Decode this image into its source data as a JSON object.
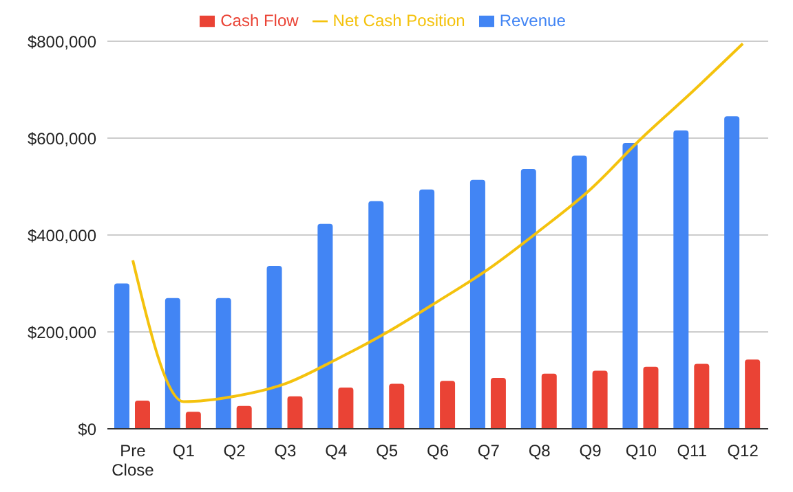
{
  "chart_data": {
    "type": "bar",
    "categories": [
      "Pre Close",
      "Q1",
      "Q2",
      "Q3",
      "Q4",
      "Q5",
      "Q6",
      "Q7",
      "Q8",
      "Q9",
      "Q10",
      "Q11",
      "Q12"
    ],
    "series": [
      {
        "name": "Revenue",
        "color": "#4285f4",
        "values": [
          300000,
          270000,
          270000,
          336000,
          423000,
          470000,
          494000,
          514000,
          536000,
          564000,
          590000,
          616000,
          645000
        ]
      },
      {
        "name": "Cash Flow",
        "color": "#ea4335",
        "values": [
          58000,
          35000,
          47000,
          67000,
          85000,
          93000,
          99000,
          105000,
          114000,
          120000,
          128000,
          134000,
          143000
        ]
      },
      {
        "name": "Net Cash Position",
        "type": "line",
        "color": "#f4c20d",
        "values": [
          348000,
          56000,
          67000,
          93000,
          143000,
          199000,
          263000,
          330000,
          409000,
          494000,
          599000,
          695000,
          795000
        ]
      }
    ],
    "ylim": [
      0,
      800000
    ],
    "yticks": [
      {
        "value": 0,
        "label": "$0"
      },
      {
        "value": 200000,
        "label": "$200,000"
      },
      {
        "value": 400000,
        "label": "$400,000"
      },
      {
        "value": 600000,
        "label": "$600,000"
      },
      {
        "value": 800000,
        "label": "$800,000"
      }
    ],
    "grid": "y",
    "legend": "top",
    "marker": "none",
    "line_style": "solid"
  }
}
